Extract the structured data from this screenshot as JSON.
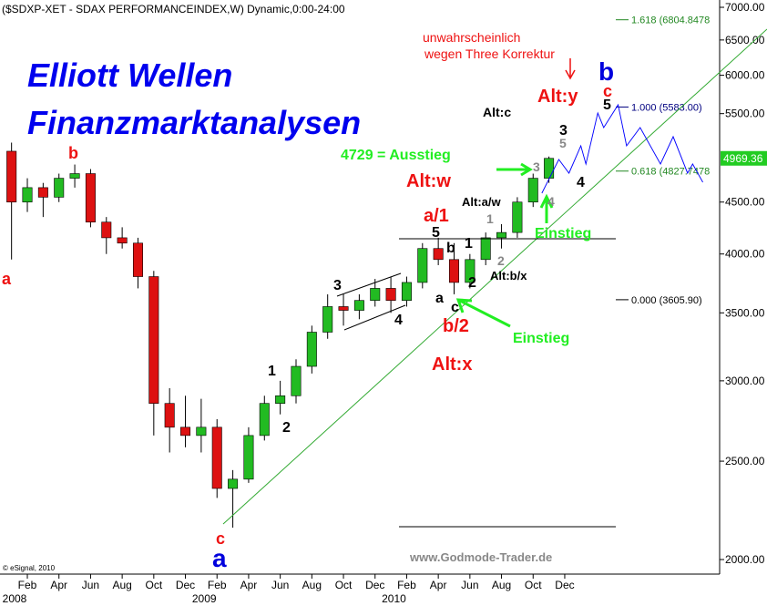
{
  "chart_data": {
    "type": "candlestick",
    "title": "($SDXP-XET - SDAX PERFORMANCEINDEX,W) Dynamic,0:00-24:00",
    "x": [
      0,
      1,
      2,
      3,
      4,
      5,
      6,
      7,
      8,
      9,
      10,
      11,
      12,
      13,
      14,
      15,
      16,
      17,
      18,
      19,
      20,
      21,
      22,
      23,
      24,
      25,
      26,
      27,
      28,
      29,
      30,
      31,
      32,
      33,
      34
    ],
    "open": [
      5050,
      4500,
      4650,
      4550,
      4750,
      4800,
      4300,
      4150,
      4100,
      3800,
      2850,
      2700,
      2650,
      2700,
      2350,
      2400,
      2650,
      2850,
      2900,
      3100,
      3350,
      3550,
      3520,
      3600,
      3700,
      3600,
      3750,
      4050,
      3950,
      3750,
      3950,
      4150,
      4200,
      4500,
      4750
    ],
    "high": [
      5150,
      4750,
      4700,
      4800,
      4900,
      4850,
      4350,
      4250,
      4150,
      3850,
      2950,
      2900,
      2880,
      2750,
      2450,
      2700,
      2900,
      3000,
      3150,
      3400,
      3650,
      3650,
      3650,
      3780,
      3800,
      3800,
      4100,
      4150,
      4100,
      4000,
      4200,
      4280,
      4550,
      4800,
      4990
    ],
    "low": [
      3950,
      4400,
      4350,
      4500,
      4650,
      4250,
      4000,
      4050,
      3700,
      2650,
      2550,
      2580,
      2550,
      2300,
      2150,
      2380,
      2620,
      2780,
      2850,
      3050,
      3300,
      3400,
      3450,
      3550,
      3500,
      3550,
      3700,
      3900,
      3650,
      3700,
      3900,
      4050,
      4150,
      4450,
      4700
    ],
    "close": [
      4500,
      4650,
      4550,
      4750,
      4800,
      4300,
      4150,
      4100,
      3800,
      2850,
      2700,
      2650,
      2700,
      2350,
      2400,
      2650,
      2850,
      2900,
      3100,
      3350,
      3550,
      3520,
      3600,
      3700,
      3600,
      3750,
      4050,
      3950,
      3750,
      3950,
      4150,
      4200,
      4500,
      4750,
      4969.36
    ],
    "up_color": "#22bb22",
    "down_color": "#dd1111",
    "log_scale": true,
    "xlim": [
      -0.73,
      44.8
    ],
    "ylim": [
      1935,
      7117
    ],
    "yticks": [
      {
        "value": 2000,
        "label": "2000.00"
      },
      {
        "value": 2500,
        "label": "2500.00"
      },
      {
        "value": 3000,
        "label": "3000.00"
      },
      {
        "value": 3500,
        "label": "3500.00"
      },
      {
        "value": 4000,
        "label": "4000.00"
      },
      {
        "value": 4500,
        "label": "4500.00"
      },
      {
        "value": 5500,
        "label": "5500.00"
      },
      {
        "value": 6000,
        "label": "6000.00"
      },
      {
        "value": 6500,
        "label": "6500.00"
      },
      {
        "value": 7000,
        "label": "7000.00"
      }
    ],
    "xticks": [
      {
        "value": 1,
        "label": "Feb"
      },
      {
        "value": 3,
        "label": "Apr"
      },
      {
        "value": 5,
        "label": "Jun"
      },
      {
        "value": 7,
        "label": "Aug"
      },
      {
        "value": 9,
        "label": "Oct"
      },
      {
        "value": 11,
        "label": "Dec"
      },
      {
        "value": 13,
        "label": "Feb"
      },
      {
        "value": 15,
        "label": "Apr"
      },
      {
        "value": 17,
        "label": "Jun"
      },
      {
        "value": 19,
        "label": "Aug"
      },
      {
        "value": 21,
        "label": "Oct"
      },
      {
        "value": 23,
        "label": "Dec"
      },
      {
        "value": 25,
        "label": "Feb"
      },
      {
        "value": 27,
        "label": "Apr"
      },
      {
        "value": 29,
        "label": "Jun"
      },
      {
        "value": 31,
        "label": "Aug"
      },
      {
        "value": 33,
        "label": "Oct"
      },
      {
        "value": 35,
        "label": "Dec"
      }
    ],
    "year_ticks": [
      {
        "value": 0,
        "label": "2008"
      },
      {
        "value": 12,
        "label": "2009"
      },
      {
        "value": 24,
        "label": "2010"
      }
    ],
    "last_price": 4969.36,
    "fib_levels": [
      {
        "value": 6804.8478,
        "label": "1.618 (6804.8478"
      },
      {
        "value": 5583.0,
        "label": "1.000 (5583.00)"
      },
      {
        "value": 4827.7478,
        "label": "0.618 (4827.7478"
      },
      {
        "value": 3605.9,
        "label": "0.000 (3605.90)"
      }
    ],
    "annotations": [
      "Elliott Wellen",
      "Finanzmarktanalysen",
      "a",
      "b",
      "c",
      "a",
      "1",
      "2",
      "3",
      "4",
      "a/1",
      "5",
      "b",
      "1",
      "a",
      "c",
      "2",
      "b/2",
      "Alt:x",
      "Einstieg",
      "Einstieg",
      "Alt:b/x",
      "1",
      "2",
      "Alt:a/w",
      "3",
      "4",
      "4729 = Ausstieg",
      "Alt:w",
      "4",
      "Alt:c",
      "3",
      "5",
      "Alt:y",
      "5",
      "c",
      "b",
      "unwahrscheinlich",
      "wegen Three Korrektur",
      "www.Godmode-Trader.de",
      "© eSignal, 2010"
    ]
  }
}
